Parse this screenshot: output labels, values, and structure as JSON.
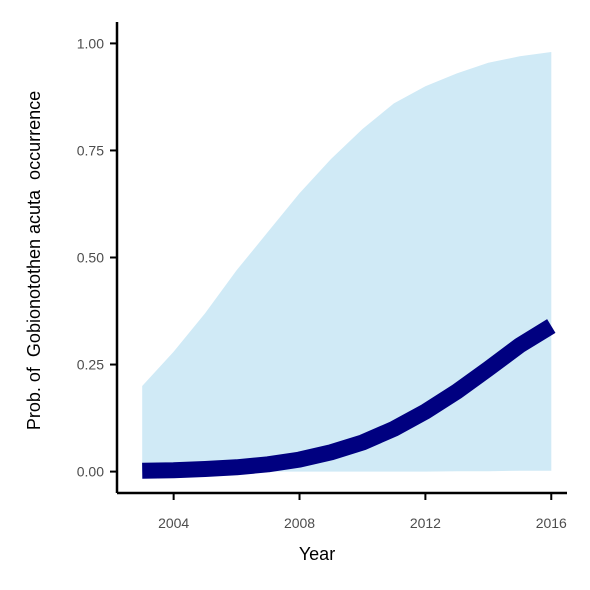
{
  "chart_data": {
    "type": "line",
    "title": "",
    "xlabel": "Year",
    "ylabel": "Prob. of  Gobionotothen acuta  occurrence",
    "xlim": [
      2002.2,
      2016.5
    ],
    "ylim": [
      -0.05,
      1.05
    ],
    "x_ticks": [
      2004,
      2008,
      2012,
      2016
    ],
    "x_tick_labels": [
      "2004",
      "2008",
      "2012",
      "2016"
    ],
    "y_ticks": [
      0,
      0.25,
      0.5,
      0.75,
      1
    ],
    "y_tick_labels": [
      "0.00",
      "0.25",
      "0.50",
      "0.75",
      "1.00"
    ],
    "grid": false,
    "series": [
      {
        "kind": "ribbon",
        "color": "#d0eaf6",
        "x": [
          2003,
          2004,
          2005,
          2006,
          2007,
          2008,
          2009,
          2010,
          2011,
          2012,
          2013,
          2014,
          2015,
          2016
        ],
        "lower": [
          0,
          0,
          0,
          0,
          0,
          0,
          0,
          0,
          0,
          0,
          0.001,
          0.001,
          0.002,
          0.002
        ],
        "upper": [
          0.2,
          0.28,
          0.37,
          0.47,
          0.56,
          0.65,
          0.73,
          0.8,
          0.86,
          0.9,
          0.93,
          0.955,
          0.97,
          0.98
        ]
      },
      {
        "kind": "line",
        "color": "#000080",
        "x": [
          2003,
          2004,
          2005,
          2006,
          2007,
          2008,
          2009,
          2010,
          2011,
          2012,
          2013,
          2014,
          2015,
          2016
        ],
        "y": [
          0.002,
          0.003,
          0.006,
          0.01,
          0.017,
          0.028,
          0.045,
          0.068,
          0.1,
          0.14,
          0.187,
          0.24,
          0.295,
          0.34
        ]
      }
    ]
  }
}
